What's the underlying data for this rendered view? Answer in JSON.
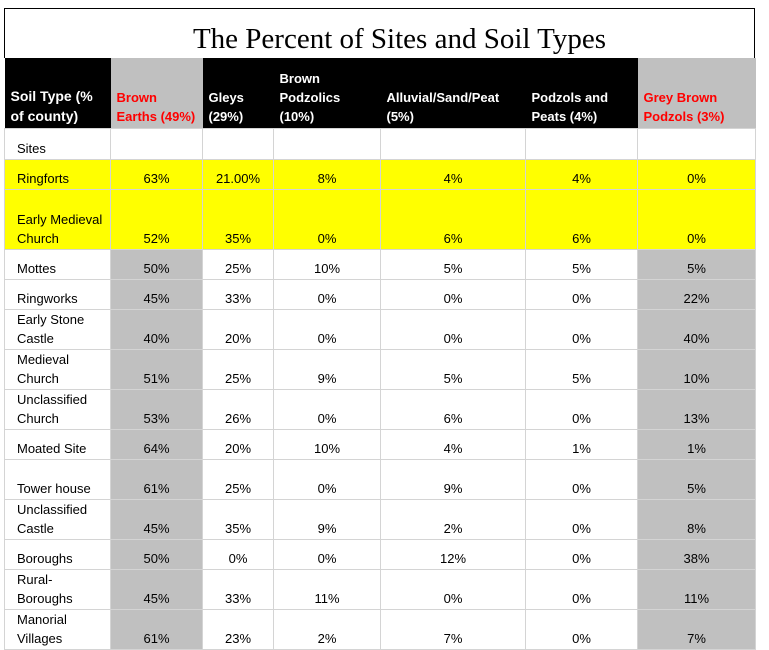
{
  "title": "The Percent of Sites and Soil Types",
  "headers": [
    {
      "label": "Soil Type (% of county)",
      "style": "black"
    },
    {
      "label": "Brown Earths (49%)",
      "style": "red"
    },
    {
      "label": "Gleys (29%)",
      "style": "black"
    },
    {
      "label": "Brown Podzolics (10%)",
      "style": "black"
    },
    {
      "label": "Alluvial/Sand/Peat (5%)",
      "style": "black"
    },
    {
      "label": "Podzols and Peats (4%)",
      "style": "black"
    },
    {
      "label": "Grey Brown Podzols (3%)",
      "style": "red"
    }
  ],
  "sites_label": "Sites",
  "rows": [
    {
      "name": "Ringforts",
      "values": [
        "63%",
        "21.00%",
        "8%",
        "4%",
        "4%",
        "0%"
      ],
      "highlight": "yellow"
    },
    {
      "name": "Early Medieval Church",
      "values": [
        "52%",
        "35%",
        "0%",
        "6%",
        "6%",
        "0%"
      ],
      "highlight": "yellow"
    },
    {
      "name": "Mottes",
      "values": [
        "50%",
        "25%",
        "10%",
        "5%",
        "5%",
        "5%"
      ],
      "highlight": "none"
    },
    {
      "name": "Ringworks",
      "values": [
        "45%",
        "33%",
        "0%",
        "0%",
        "0%",
        "22%"
      ],
      "highlight": "none"
    },
    {
      "name": "Early Stone Castle",
      "values": [
        "40%",
        "20%",
        "0%",
        "0%",
        "0%",
        "40%"
      ],
      "highlight": "none"
    },
    {
      "name": "Medieval Church",
      "values": [
        "51%",
        "25%",
        "9%",
        "5%",
        "5%",
        "10%"
      ],
      "highlight": "none"
    },
    {
      "name": "Unclassified Church",
      "values": [
        "53%",
        "26%",
        "0%",
        "6%",
        "0%",
        "13%"
      ],
      "highlight": "none"
    },
    {
      "name": "Moated Site",
      "values": [
        "64%",
        "20%",
        "10%",
        "4%",
        "1%",
        "1%"
      ],
      "highlight": "none"
    },
    {
      "name": "Tower house",
      "values": [
        "61%",
        "25%",
        "0%",
        "9%",
        "0%",
        "5%"
      ],
      "highlight": "none"
    },
    {
      "name": "Unclassified Castle",
      "values": [
        "45%",
        "35%",
        "9%",
        "2%",
        "0%",
        "8%"
      ],
      "highlight": "none"
    },
    {
      "name": "Boroughs",
      "values": [
        "50%",
        "0%",
        "0%",
        "12%",
        "0%",
        "38%"
      ],
      "highlight": "none"
    },
    {
      "name": "Rural-Boroughs",
      "values": [
        "45%",
        "33%",
        "11%",
        "0%",
        "0%",
        "11%"
      ],
      "highlight": "none"
    },
    {
      "name": "Manorial Villages",
      "values": [
        "61%",
        "23%",
        "2%",
        "7%",
        "0%",
        "7%"
      ],
      "highlight": "none"
    }
  ],
  "colors": {
    "yellow": "#ffff00",
    "grey": "#c0c0c0",
    "header_bg": "#000000",
    "header_red": "#ff0000"
  }
}
